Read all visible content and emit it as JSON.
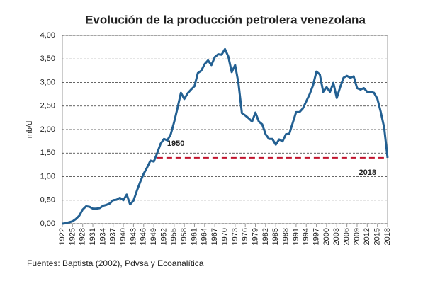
{
  "chart_data": {
    "type": "line",
    "title": "Evolución de la producción petrolera venezolana",
    "y_label": "mb/d",
    "source": "Fuentes: Baptista (2002),  Pdvsa  y Ecoanalítica",
    "x": [
      1922,
      1923,
      1924,
      1925,
      1926,
      1927,
      1928,
      1929,
      1930,
      1931,
      1932,
      1933,
      1934,
      1935,
      1936,
      1937,
      1938,
      1939,
      1940,
      1941,
      1942,
      1943,
      1944,
      1945,
      1946,
      1947,
      1948,
      1949,
      1950,
      1951,
      1952,
      1953,
      1954,
      1955,
      1956,
      1957,
      1958,
      1959,
      1960,
      1961,
      1962,
      1963,
      1964,
      1965,
      1966,
      1967,
      1968,
      1969,
      1970,
      1971,
      1972,
      1973,
      1974,
      1975,
      1976,
      1977,
      1978,
      1979,
      1980,
      1981,
      1982,
      1983,
      1984,
      1985,
      1986,
      1987,
      1988,
      1989,
      1990,
      1991,
      1992,
      1993,
      1994,
      1995,
      1996,
      1997,
      1998,
      1999,
      2000,
      2001,
      2002,
      2003,
      2004,
      2005,
      2006,
      2007,
      2008,
      2009,
      2010,
      2011,
      2012,
      2013,
      2014,
      2015,
      2016,
      2017,
      2018
    ],
    "series": [
      {
        "color": "#236092",
        "values": [
          0.0,
          0.01,
          0.03,
          0.05,
          0.1,
          0.17,
          0.3,
          0.37,
          0.36,
          0.32,
          0.32,
          0.33,
          0.38,
          0.4,
          0.43,
          0.5,
          0.51,
          0.55,
          0.5,
          0.62,
          0.41,
          0.49,
          0.7,
          0.89,
          1.06,
          1.19,
          1.34,
          1.32,
          1.5,
          1.7,
          1.8,
          1.77,
          1.9,
          2.16,
          2.46,
          2.78,
          2.65,
          2.77,
          2.85,
          2.92,
          3.2,
          3.25,
          3.39,
          3.47,
          3.37,
          3.54,
          3.6,
          3.59,
          3.71,
          3.55,
          3.22,
          3.37,
          2.98,
          2.35,
          2.3,
          2.24,
          2.17,
          2.36,
          2.17,
          2.11,
          1.9,
          1.8,
          1.8,
          1.68,
          1.79,
          1.75,
          1.9,
          1.91,
          2.14,
          2.37,
          2.37,
          2.45,
          2.6,
          2.75,
          2.94,
          3.23,
          3.17,
          2.8,
          2.9,
          2.8,
          2.99,
          2.67,
          2.9,
          3.1,
          3.14,
          3.1,
          3.13,
          2.88,
          2.85,
          2.88,
          2.8,
          2.8,
          2.78,
          2.65,
          2.37,
          2.04,
          1.4
        ]
      }
    ],
    "xlim": [
      1922,
      2018
    ],
    "xticks": [
      1922,
      1925,
      1928,
      1931,
      1934,
      1937,
      1940,
      1943,
      1946,
      1949,
      1952,
      1955,
      1958,
      1961,
      1964,
      1967,
      1970,
      1973,
      1976,
      1979,
      1982,
      1985,
      1988,
      1991,
      1994,
      1997,
      2000,
      2003,
      2006,
      2009,
      2012,
      2015,
      2018
    ],
    "ylim": [
      0,
      4
    ],
    "yticks": [
      {
        "value": 0,
        "label": "0,00"
      },
      {
        "value": 0.5,
        "label": "0,50"
      },
      {
        "value": 1,
        "label": "1,00"
      },
      {
        "value": 1.5,
        "label": "1,50"
      },
      {
        "value": 2,
        "label": "2,00"
      },
      {
        "value": 2.5,
        "label": "2,50"
      },
      {
        "value": 3,
        "label": "3,00"
      },
      {
        "value": 3.5,
        "label": "3,50"
      },
      {
        "value": 4,
        "label": "4,00"
      }
    ],
    "grid": true,
    "reference_line": {
      "y": 1.4,
      "from": 1950,
      "to": 2018,
      "color": "#c0142e",
      "from_color": "#a3172c",
      "to_color": "#e07a2e"
    }
  }
}
